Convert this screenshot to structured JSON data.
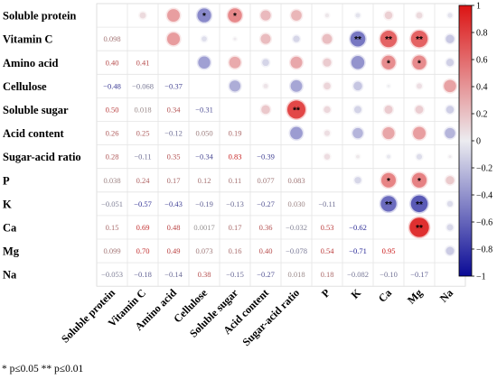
{
  "chart_data": {
    "type": "heatmap",
    "title": "",
    "variables": [
      "Soluble protein",
      "Vitamin C",
      "Amino acid",
      "Cellulose",
      "Soluble sugar",
      "Acid content",
      "Sugar-acid ratio",
      "P",
      "K",
      "Ca",
      "Mg",
      "Na"
    ],
    "lower_triangle_values": [
      [],
      [
        0.098
      ],
      [
        0.4,
        0.41
      ],
      [
        -0.48,
        -0.068,
        -0.37
      ],
      [
        0.5,
        0.018,
        0.34,
        -0.31
      ],
      [
        0.26,
        0.25,
        -0.12,
        0.05,
        0.19
      ],
      [
        0.28,
        -0.11,
        0.35,
        -0.34,
        0.83,
        -0.39
      ],
      [
        0.038,
        0.24,
        0.17,
        0.12,
        0.11,
        0.077,
        0.083
      ],
      [
        -0.051,
        -0.57,
        -0.43,
        -0.19,
        -0.13,
        -0.27,
        0.03,
        -0.11
      ],
      [
        0.15,
        0.69,
        0.48,
        0.0017,
        0.17,
        0.36,
        -0.032,
        0.53,
        -0.62
      ],
      [
        0.099,
        0.7,
        0.49,
        0.073,
        0.16,
        0.4,
        -0.078,
        0.54,
        -0.71,
        0.95
      ],
      [
        -0.053,
        -0.18,
        -0.14,
        0.38,
        -0.15,
        -0.27,
        0.018,
        0.18,
        -0.082,
        -0.1,
        -0.17
      ]
    ],
    "lower_triangle_labels": [
      [],
      [
        "0.098"
      ],
      [
        "0.40",
        "0.41"
      ],
      [
        "−0.48",
        "−0.068",
        "−0.37"
      ],
      [
        "0.50",
        "0.018",
        "0.34",
        "−0.31"
      ],
      [
        "0.26",
        "0.25",
        "−0.12",
        "0.050",
        "0.19"
      ],
      [
        "0.28",
        "−0.11",
        "0.35",
        "−0.34",
        "0.83",
        "−0.39"
      ],
      [
        "0.038",
        "0.24",
        "0.17",
        "0.12",
        "0.11",
        "0.077",
        "0.083"
      ],
      [
        "−0.051",
        "−0.57",
        "−0.43",
        "−0.19",
        "−0.13",
        "−0.27",
        "0.030",
        "−0.11"
      ],
      [
        "0.15",
        "0.69",
        "0.48",
        "0.0017",
        "0.17",
        "0.36",
        "−0.032",
        "0.53",
        "−0.62"
      ],
      [
        "0.099",
        "0.70",
        "0.49",
        "0.073",
        "0.16",
        "0.40",
        "−0.078",
        "0.54",
        "−0.71",
        "0.95"
      ],
      [
        "−0.053",
        "−0.18",
        "−0.14",
        "0.38",
        "−0.15",
        "−0.27",
        "0.018",
        "0.18",
        "−0.082",
        "−0.10",
        "−0.17"
      ]
    ],
    "upper_triangle_significance": {
      "0,3": "*",
      "0,4": "*",
      "1,8": "**",
      "1,9": "**",
      "1,10": "**",
      "2,9": "*",
      "2,10": "*",
      "4,6": "**",
      "7,9": "*",
      "7,10": "*",
      "8,9": "**",
      "8,10": "**",
      "9,10": "**"
    },
    "colorbar": {
      "range": [
        -1,
        1
      ],
      "ticks": [
        "1",
        "0.8",
        "0.6",
        "0.4",
        "0.2",
        "0",
        "−0.2",
        "−0.4",
        "−0.6",
        "−0.8",
        "−1"
      ],
      "colors": {
        "negative": "#0a0a96",
        "zero": "#ececf0",
        "positive": "#dc1414"
      }
    },
    "upper_triangle_encoding": "circle size and color show correlation strength",
    "grid": true
  },
  "footnote": "* p≤0.05  ** p≤0.01"
}
